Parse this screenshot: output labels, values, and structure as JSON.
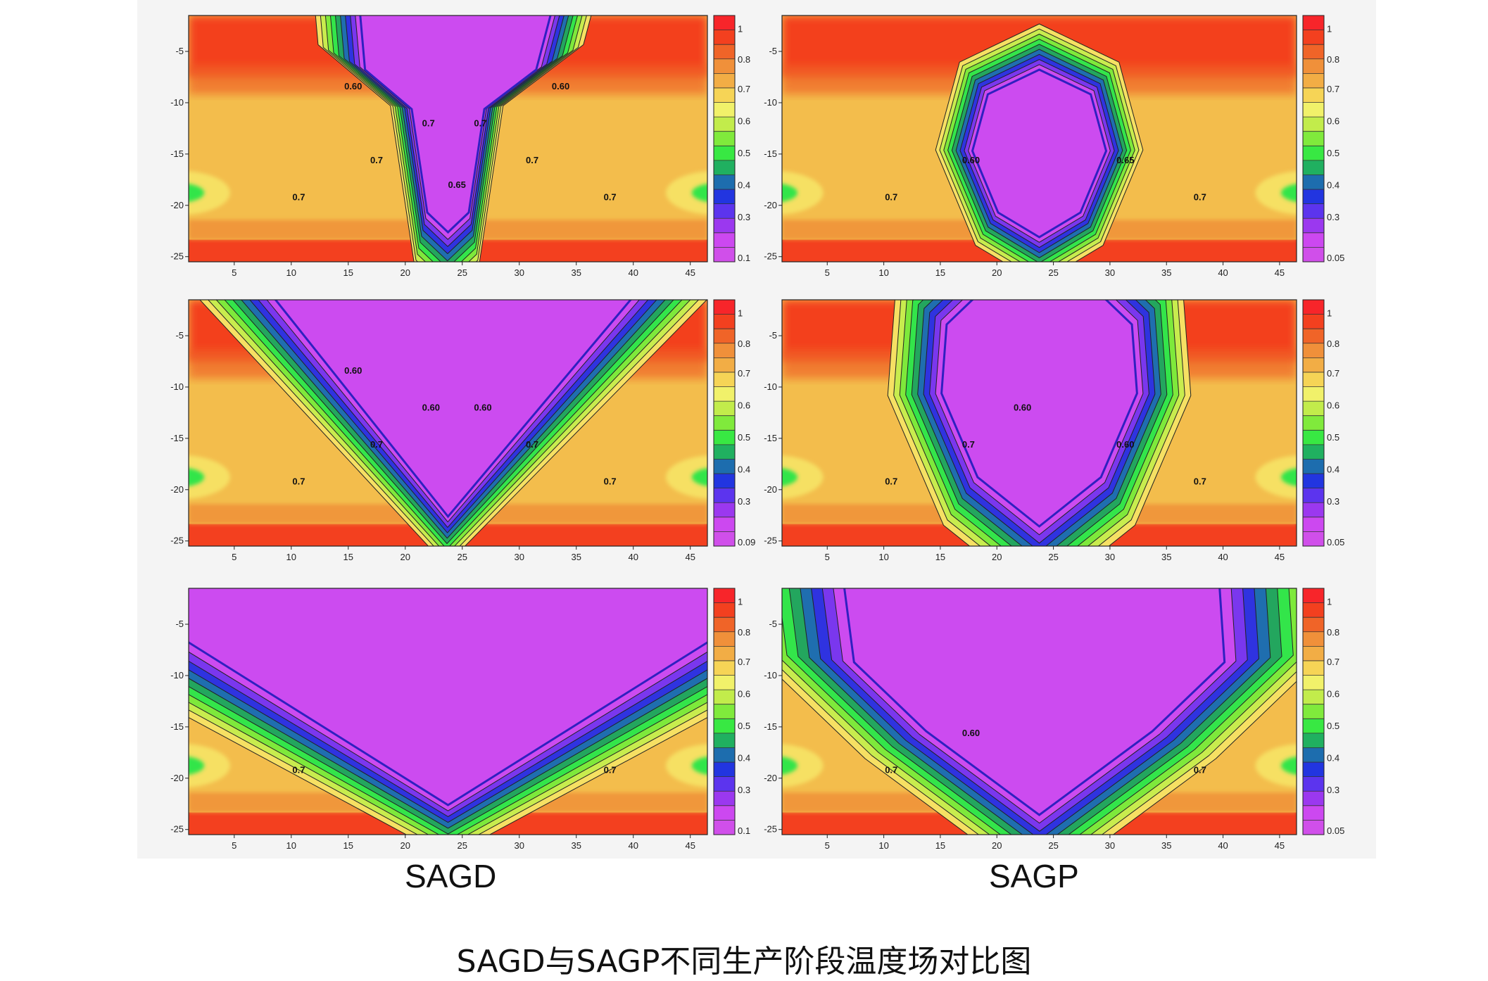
{
  "chart_data": [
    {
      "type": "heatmap",
      "row": 0,
      "column": "SAGD",
      "pattern": "chamber-early",
      "xticks": [
        5,
        10,
        15,
        20,
        25,
        30,
        35,
        40,
        45
      ],
      "yticks": [
        -5,
        -10,
        -15,
        -20,
        -25
      ],
      "xlim": [
        1,
        46.5
      ],
      "ylim": [
        -25.5,
        -1.5
      ],
      "colorbar_ticks": [
        1,
        0.8,
        0.7,
        0.6,
        0.5,
        0.4,
        0.3,
        0.1
      ],
      "contour_labels": [
        "0.7",
        "0.7",
        "0.7",
        "0.7",
        "0.7",
        "0.7",
        "0.60",
        "0.60",
        "0.65"
      ]
    },
    {
      "type": "heatmap",
      "row": 0,
      "column": "SAGP",
      "pattern": "bulb-early",
      "xticks": [
        5,
        10,
        15,
        20,
        25,
        30,
        35,
        40,
        45
      ],
      "yticks": [
        -5,
        -10,
        -15,
        -20,
        -25
      ],
      "xlim": [
        1,
        46.5
      ],
      "ylim": [
        -25.5,
        -1.5
      ],
      "colorbar_ticks": [
        1,
        0.8,
        0.7,
        0.6,
        0.5,
        0.4,
        0.3,
        0.05
      ],
      "contour_labels": [
        "0.7",
        "0.7",
        "0.60",
        "0.65"
      ]
    },
    {
      "type": "heatmap",
      "row": 1,
      "column": "SAGD",
      "pattern": "v-mid",
      "xticks": [
        5,
        10,
        15,
        20,
        25,
        30,
        35,
        40,
        45
      ],
      "yticks": [
        -5,
        -10,
        -15,
        -20,
        -25
      ],
      "xlim": [
        1,
        46.5
      ],
      "ylim": [
        -25.5,
        -1.5
      ],
      "colorbar_ticks": [
        1,
        0.8,
        0.7,
        0.6,
        0.5,
        0.4,
        0.3,
        0.09
      ],
      "contour_labels": [
        "0.7",
        "0.7",
        "0.7",
        "0.7",
        "0.60",
        "0.60",
        "0.60"
      ]
    },
    {
      "type": "heatmap",
      "row": 1,
      "column": "SAGP",
      "pattern": "bulb-mid",
      "xticks": [
        5,
        10,
        15,
        20,
        25,
        30,
        35,
        40,
        45
      ],
      "yticks": [
        -5,
        -10,
        -15,
        -20,
        -25
      ],
      "xlim": [
        1,
        46.5
      ],
      "ylim": [
        -25.5,
        -1.5
      ],
      "colorbar_ticks": [
        1,
        0.8,
        0.7,
        0.6,
        0.5,
        0.4,
        0.3,
        0.05
      ],
      "contour_labels": [
        "0.7",
        "0.7",
        "0.7",
        "0.60",
        "0.60"
      ]
    },
    {
      "type": "heatmap",
      "row": 2,
      "column": "SAGD",
      "pattern": "v-late",
      "xticks": [
        5,
        10,
        15,
        20,
        25,
        30,
        35,
        40,
        45
      ],
      "yticks": [
        -5,
        -10,
        -15,
        -20,
        -25
      ],
      "xlim": [
        1,
        46.5
      ],
      "ylim": [
        -25.5,
        -1.5
      ],
      "colorbar_ticks": [
        1,
        0.8,
        0.7,
        0.6,
        0.5,
        0.4,
        0.3,
        0.1
      ],
      "contour_labels": [
        "0.7",
        "0.7"
      ]
    },
    {
      "type": "heatmap",
      "row": 2,
      "column": "SAGP",
      "pattern": "bulb-late",
      "xticks": [
        5,
        10,
        15,
        20,
        25,
        30,
        35,
        40,
        45
      ],
      "yticks": [
        -5,
        -10,
        -15,
        -20,
        -25
      ],
      "xlim": [
        1,
        46.5
      ],
      "ylim": [
        -25.5,
        -1.5
      ],
      "colorbar_ticks": [
        1,
        0.8,
        0.7,
        0.6,
        0.5,
        0.4,
        0.3,
        0.05
      ],
      "contour_labels": [
        "0.7",
        "0.7",
        "0.60"
      ]
    }
  ],
  "colorbar_colors": [
    "#f7252a",
    "#f3401f",
    "#f06428",
    "#f0903a",
    "#f2ad45",
    "#f6d456",
    "#f1f16a",
    "#c2ec4b",
    "#80ea3c",
    "#38e843",
    "#20b060",
    "#1d6dae",
    "#2235e0",
    "#5c34ee",
    "#9b38ef",
    "#cc48f0",
    "#d04fea"
  ],
  "band_colors": [
    "#f3401f",
    "#f06428",
    "#f0973a",
    "#f3bd4c",
    "#f6e063",
    "#c8ec4e",
    "#7ee93b",
    "#33e54a",
    "#23a65e",
    "#1f6eaf",
    "#2f33e0",
    "#7a37ee",
    "#cc4bf0"
  ],
  "labels": {
    "left": "SAGD",
    "right": "SAGP"
  },
  "caption": "SAGD与SAGP不同生产阶段温度场对比图"
}
